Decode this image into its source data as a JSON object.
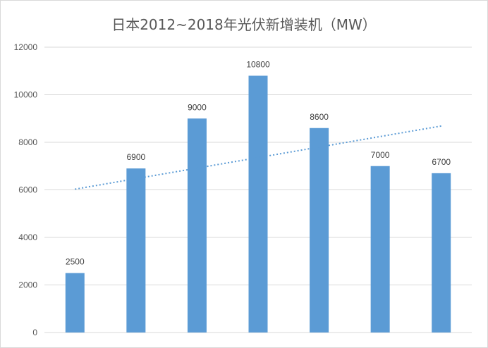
{
  "chart_data": {
    "type": "bar",
    "title": "日本2012~2018年光伏新增装机（MW）",
    "values": [
      2500,
      6900,
      9000,
      10800,
      8600,
      7000,
      6700
    ],
    "y_ticks": [
      "0",
      "2000",
      "4000",
      "6000",
      "8000",
      "10000",
      "12000"
    ],
    "ylim": [
      0,
      12000
    ],
    "grid": true,
    "legend": "none",
    "trendline": {
      "type": "linear",
      "style": "dotted"
    },
    "colors": {
      "bar": "#5b9bd5",
      "grid": "#d9d9d9",
      "text": "#595959"
    }
  }
}
